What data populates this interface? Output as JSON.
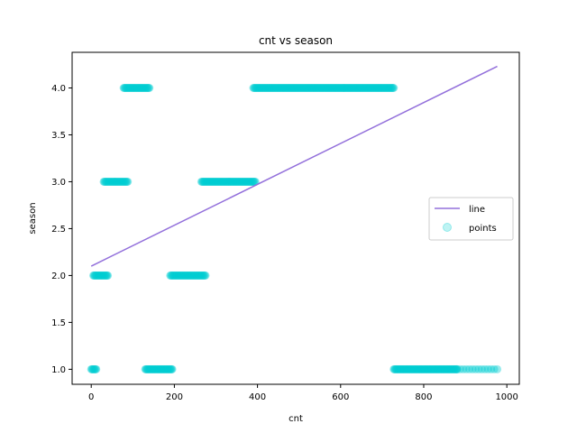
{
  "chart_data": {
    "type": "scatter",
    "title": "cnt vs season",
    "xlabel": "cnt",
    "ylabel": "season",
    "xlim": [
      -46,
      1030
    ],
    "ylim": [
      0.84,
      4.38
    ],
    "xticks": [
      0,
      200,
      400,
      600,
      800,
      1000
    ],
    "xtick_labels": [
      "0",
      "200",
      "400",
      "600",
      "800",
      "1000"
    ],
    "yticks": [
      1.0,
      1.5,
      2.0,
      2.5,
      3.0,
      3.5,
      4.0
    ],
    "ytick_labels": [
      "1.0",
      "1.5",
      "2.0",
      "2.5",
      "3.0",
      "3.5",
      "4.0"
    ],
    "grid": false,
    "legend_position": "center-right",
    "series": [
      {
        "name": "line",
        "kind": "line",
        "color": "#9370db",
        "x": [
          0,
          977
        ],
        "y": [
          2.1,
          4.23
        ]
      },
      {
        "name": "points",
        "kind": "scatter",
        "color": "#00ced1",
        "alpha": 0.4,
        "segments": [
          {
            "y": 1,
            "x_start": 0,
            "x_end": 12,
            "count": 8
          },
          {
            "y": 1,
            "x_start": 130,
            "x_end": 195,
            "count": 40
          },
          {
            "y": 1,
            "x_start": 728,
            "x_end": 880,
            "count": 90
          },
          {
            "y": 1,
            "x_start": 880,
            "x_end": 977,
            "count": 14
          },
          {
            "y": 2,
            "x_start": 5,
            "x_end": 40,
            "count": 20
          },
          {
            "y": 2,
            "x_start": 190,
            "x_end": 275,
            "count": 45
          },
          {
            "y": 3,
            "x_start": 30,
            "x_end": 88,
            "count": 30
          },
          {
            "y": 3,
            "x_start": 265,
            "x_end": 395,
            "count": 70
          },
          {
            "y": 4,
            "x_start": 78,
            "x_end": 140,
            "count": 35
          },
          {
            "y": 4,
            "x_start": 390,
            "x_end": 728,
            "count": 180
          }
        ]
      }
    ]
  }
}
